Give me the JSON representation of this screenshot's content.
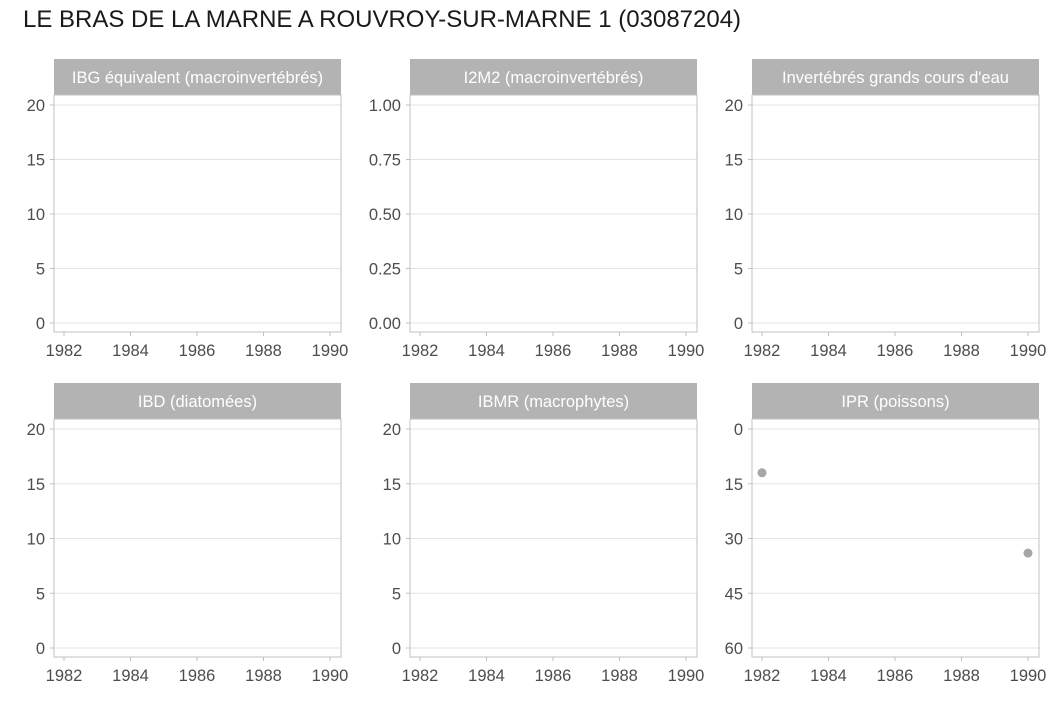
{
  "page": {
    "title": "LE BRAS DE LA MARNE A ROUVROY-SUR-MARNE 1 (03087204)"
  },
  "colors": {
    "strip": "#b3b3b3",
    "strip_text": "#ffffff",
    "grid": "#e3e3e3",
    "border": "#c0c0c0",
    "tick_text": "#4d4d4d",
    "point": "#a6a6a6"
  },
  "chart_data": [
    {
      "type": "scatter",
      "title": "IBG équivalent (macroinvertébrés)",
      "x_ticks": [
        "1982",
        "1984",
        "1986",
        "1988",
        "1990"
      ],
      "y_ticks": [
        "0",
        "5",
        "10",
        "15",
        "20"
      ],
      "ylim": [
        0,
        20
      ],
      "y_reversed": false,
      "points": []
    },
    {
      "type": "scatter",
      "title": "I2M2 (macroinvertébrés)",
      "x_ticks": [
        "1982",
        "1984",
        "1986",
        "1988",
        "1990"
      ],
      "y_ticks": [
        "0.00",
        "0.25",
        "0.50",
        "0.75",
        "1.00"
      ],
      "ylim": [
        0,
        1
      ],
      "y_reversed": false,
      "points": []
    },
    {
      "type": "scatter",
      "title": "Invertébrés grands cours d'eau",
      "x_ticks": [
        "1982",
        "1984",
        "1986",
        "1988",
        "1990"
      ],
      "y_ticks": [
        "0",
        "5",
        "10",
        "15",
        "20"
      ],
      "ylim": [
        0,
        20
      ],
      "y_reversed": false,
      "points": []
    },
    {
      "type": "scatter",
      "title": "IBD (diatomées)",
      "x_ticks": [
        "1982",
        "1984",
        "1986",
        "1988",
        "1990"
      ],
      "y_ticks": [
        "0",
        "5",
        "10",
        "15",
        "20"
      ],
      "ylim": [
        0,
        20
      ],
      "y_reversed": false,
      "points": []
    },
    {
      "type": "scatter",
      "title": "IBMR (macrophytes)",
      "x_ticks": [
        "1982",
        "1984",
        "1986",
        "1988",
        "1990"
      ],
      "y_ticks": [
        "0",
        "5",
        "10",
        "15",
        "20"
      ],
      "ylim": [
        0,
        20
      ],
      "y_reversed": false,
      "points": []
    },
    {
      "type": "scatter",
      "title": "IPR (poissons)",
      "x_ticks": [
        "1982",
        "1984",
        "1986",
        "1988",
        "1990"
      ],
      "y_ticks": [
        "0",
        "15",
        "30",
        "45",
        "60"
      ],
      "ylim": [
        0,
        60
      ],
      "y_reversed": true,
      "points": [
        {
          "x": 1982,
          "y": 12
        },
        {
          "x": 1990,
          "y": 34
        }
      ]
    }
  ]
}
